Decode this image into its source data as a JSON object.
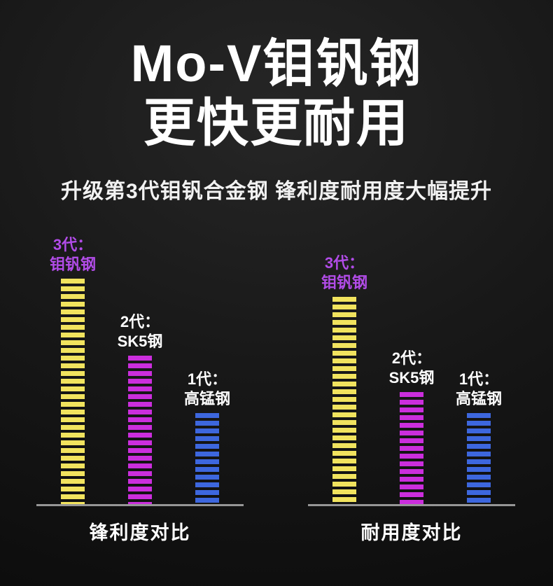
{
  "header": {
    "title_line1": "Mo-V钼钒钢",
    "title_line2": "更快更耐用",
    "subtitle": "升级第3代钼钒合金钢 锋利度耐用度大幅提升"
  },
  "colors": {
    "background_center": "#262626",
    "background_edge": "#0b0b0b",
    "title_text": "#ffffff",
    "baseline": "#969696",
    "bar_yellow": "#f1e35e",
    "bar_magenta": "#cb2edd",
    "bar_blue": "#3d67de",
    "gen3_label_purple": "#b24ce8"
  },
  "chart_data": [
    {
      "type": "bar",
      "title": "锋利度对比",
      "categories": [
        "3代：钼钒钢",
        "2代：SK5钢",
        "1代：高锰钢"
      ],
      "category_lines": [
        [
          "3代：",
          "钼钒钢"
        ],
        [
          "2代：",
          "SK5钢"
        ],
        [
          "1代：",
          "高锰钢"
        ]
      ],
      "values": [
        100,
        66,
        41
      ],
      "value_note": "relative bar heights, no numeric axis shown",
      "bar_colors": [
        "#f1e35e",
        "#cb2edd",
        "#3d67de"
      ],
      "label_colors": [
        "#b24ce8",
        "#ffffff",
        "#ffffff"
      ],
      "ylim": [
        0,
        100
      ],
      "grid": false,
      "legend": "none",
      "bar_style": "horizontal-striped"
    },
    {
      "type": "bar",
      "title": "耐用度对比",
      "categories": [
        "3代：钼钒钢",
        "2代：SK5钢",
        "1代：高锰钢"
      ],
      "category_lines": [
        [
          "3代：",
          "钼钒钢"
        ],
        [
          "2代：",
          "SK5钢"
        ],
        [
          "1代：",
          "高锰钢"
        ]
      ],
      "values": [
        92,
        50,
        41
      ],
      "value_note": "relative bar heights, no numeric axis shown",
      "bar_colors": [
        "#f1e35e",
        "#cb2edd",
        "#3d67de"
      ],
      "label_colors": [
        "#b24ce8",
        "#ffffff",
        "#ffffff"
      ],
      "ylim": [
        0,
        100
      ],
      "grid": false,
      "legend": "none",
      "bar_style": "horizontal-striped"
    }
  ]
}
